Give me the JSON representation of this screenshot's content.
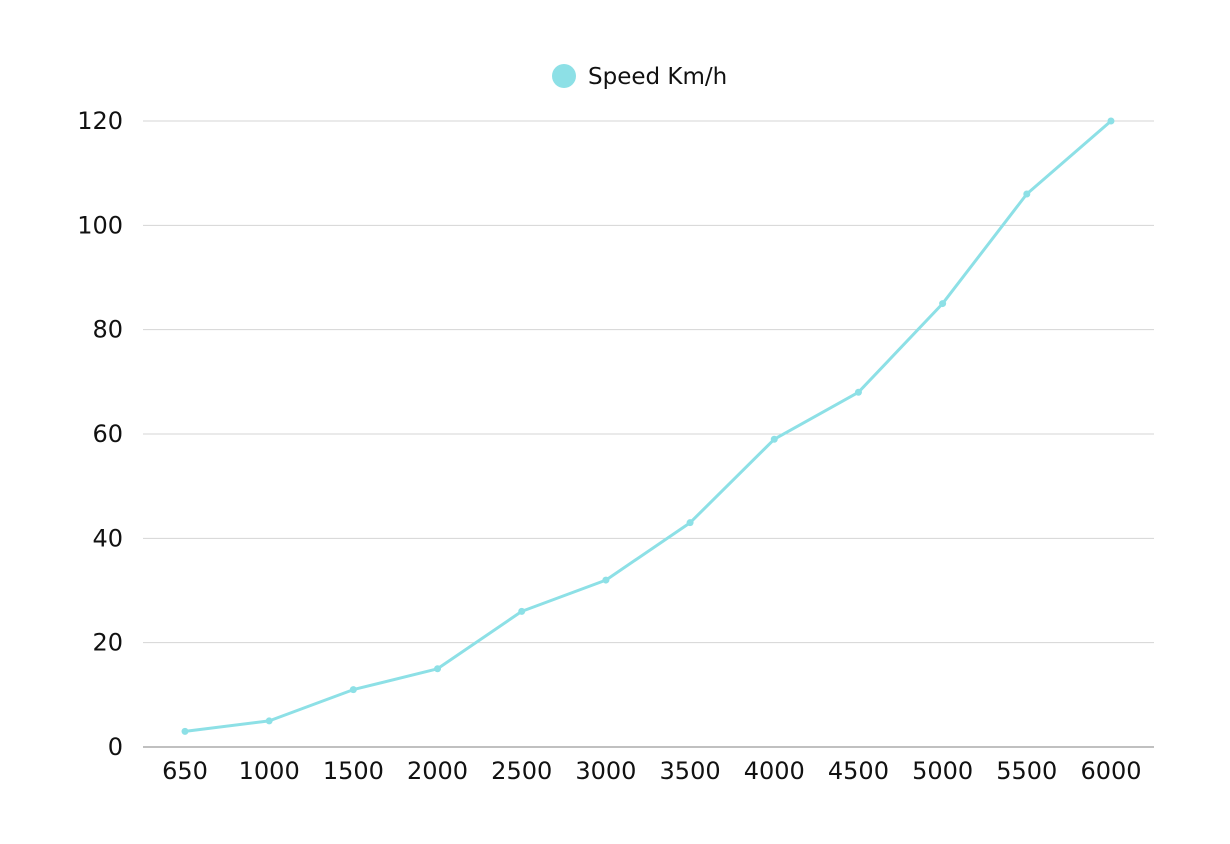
{
  "chart_data": {
    "type": "line",
    "x": [
      "650",
      "1000",
      "1500",
      "2000",
      "2500",
      "3000",
      "3500",
      "4000",
      "4500",
      "5000",
      "5500",
      "6000"
    ],
    "series": [
      {
        "name": "Speed Km/h",
        "color": "#8de0e6",
        "values": [
          3,
          5,
          11,
          15,
          26,
          32,
          43,
          59,
          68,
          85,
          106,
          120
        ]
      }
    ],
    "ylim": [
      0,
      120
    ],
    "yticks": [
      "0",
      "20",
      "40",
      "60",
      "80",
      "100",
      "120"
    ],
    "grid": true,
    "legend_position": "top-center",
    "title": "",
    "xlabel": "",
    "ylabel": ""
  }
}
